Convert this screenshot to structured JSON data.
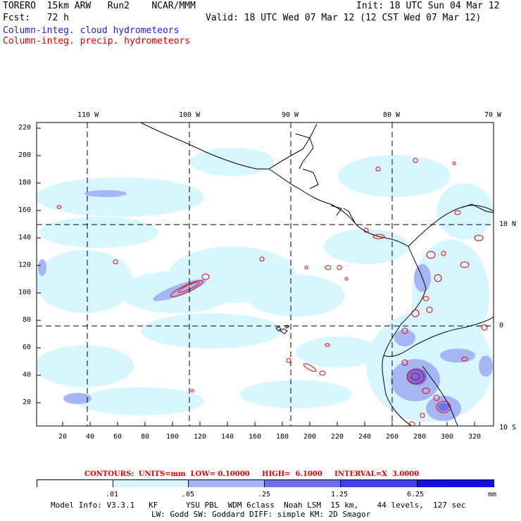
{
  "header": {
    "model": "TORERO  15km ARW   Run2    NCAR/MMM",
    "init": "Init: 18 UTC Sun 04 Mar 12",
    "fcst": "Fcst:   72 h",
    "valid": "Valid: 18 UTC Wed 07 Mar 12 (12 CST Wed 07 Mar 12)",
    "field1": "Column-integ. cloud hydrometeors",
    "field2": "Column-integ. precip. hydrometeors"
  },
  "map": {
    "top_lon_labels": [
      "110 W",
      "100 W",
      "90 W",
      "80 W",
      "70 W"
    ],
    "right_lat_labels": [
      "10 N",
      "0",
      "10 S"
    ],
    "y_ticks": [
      "220",
      "200",
      "180",
      "160",
      "140",
      "120",
      "100",
      "80",
      "60",
      "40",
      "20"
    ],
    "x_ticks": [
      "20",
      "40",
      "60",
      "80",
      "100",
      "120",
      "140",
      "160",
      "180",
      "200",
      "220",
      "240",
      "260",
      "280",
      "300",
      "320"
    ]
  },
  "contour_info": "CONTOURS:  UNITS=mm  LOW= 0.10000     HIGH=  6.1000     INTERVAL=X  3.0000",
  "colorbar": {
    "labels": [
      ".01",
      ".05",
      ".25",
      "1.25",
      "6.25"
    ],
    "unit": "mm",
    "colors": [
      "#ffffff",
      "#d8f6ff",
      "#a6b6f4",
      "#7070ec",
      "#4040e6",
      "#1010d8"
    ]
  },
  "model_info": {
    "line1": "Model Info: V3.3.1   KF      YSU PBL  WDM 6class  Noah LSM  15 km,    44 levels,  127 sec",
    "line2": "LW: Godd SW: Goddard DIFF: simple KM: 2D Smagor"
  }
}
